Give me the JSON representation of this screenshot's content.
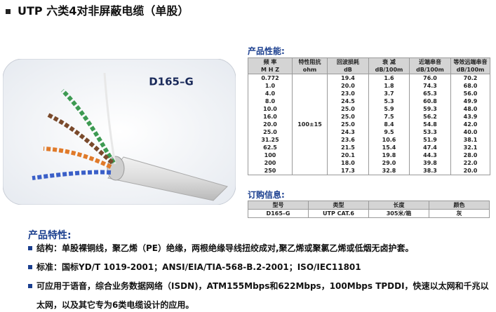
{
  "header": {
    "title": "UTP 六类4对非屏蔽电缆（单股）"
  },
  "product_image": {
    "label": "D165–G"
  },
  "performance": {
    "title": "产品性能:",
    "columns": [
      {
        "name": "频 率",
        "unit": "M H Z"
      },
      {
        "name": "特性阻抗",
        "unit": "ohm"
      },
      {
        "name": "回波损耗",
        "unit": "dB"
      },
      {
        "name": "衰 减",
        "unit": "dB/100m"
      },
      {
        "name": "近端串音",
        "unit": "dB/100m"
      },
      {
        "name": "等效远端串音",
        "unit": "dB/100m"
      }
    ],
    "impedance": "100±15",
    "rows": [
      [
        "0.772",
        "19.4",
        "1.6",
        "76.0",
        "70.2"
      ],
      [
        "1.0",
        "20.0",
        "1.8",
        "74.3",
        "68.0"
      ],
      [
        "4.0",
        "23.0",
        "3.7",
        "65.3",
        "56.0"
      ],
      [
        "8.0",
        "24.5",
        "5.3",
        "60.8",
        "49.9"
      ],
      [
        "10.0",
        "25.0",
        "5.9",
        "59.3",
        "48.0"
      ],
      [
        "16.0",
        "25.0",
        "7.5",
        "56.2",
        "43.9"
      ],
      [
        "20.0",
        "25.0",
        "8.4",
        "54.8",
        "42.0"
      ],
      [
        "25.0",
        "24.3",
        "9.5",
        "53.3",
        "40.0"
      ],
      [
        "31.25",
        "23.6",
        "10.6",
        "51.9",
        "38.1"
      ],
      [
        "62.5",
        "21.5",
        "15.4",
        "47.4",
        "32.1"
      ],
      [
        "100",
        "20.1",
        "19.8",
        "44.3",
        "28.0"
      ],
      [
        "200",
        "18.0",
        "29.0",
        "39.8",
        "22.0"
      ],
      [
        "250",
        "17.3",
        "32.8",
        "38.3",
        "20.0"
      ]
    ]
  },
  "ordering": {
    "title": "订购信息:",
    "columns": [
      "型号",
      "类型",
      "长度",
      "颜色"
    ],
    "rows": [
      [
        "D165–G",
        "UTP CAT.6",
        "305米/箱",
        "灰"
      ]
    ]
  },
  "features": {
    "title": "产品特性:",
    "items": [
      "结构：单股裸铜线，聚乙烯（PE）绝缘，两根绝缘导线扭绞成对,聚乙烯或聚氯乙烯或低烟无卤护套。",
      "标准：国标YD/T 1019-2001；ANSI/EIA/TIA-568-B.2-2001；ISO/IEC11801",
      "可应用于语音，综合业务数据网络（ISDN)，ATM155Mbps和622Mbps，100Mbps TPDDI，快速以太网和千兆以太网，以及其它专为6类电缆设计的应用。"
    ]
  }
}
